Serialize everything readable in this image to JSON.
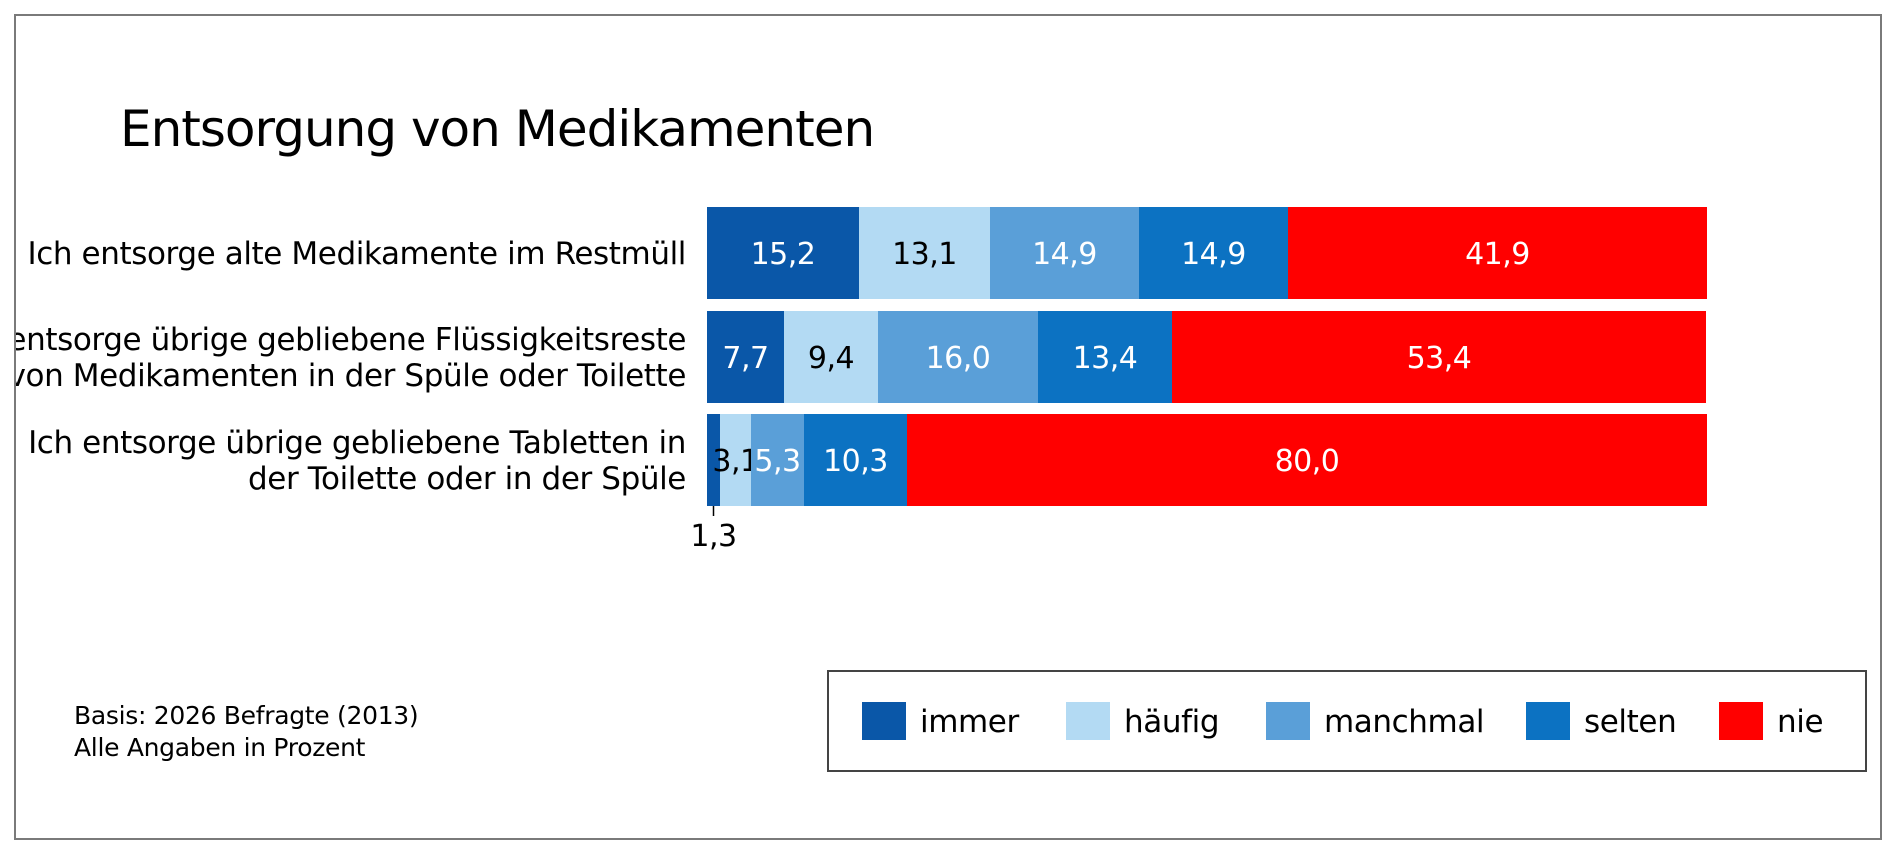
{
  "chart_data": {
    "type": "bar",
    "orientation": "horizontal",
    "stacked": true,
    "title": "Entsorgung von Medikamenten",
    "xlim": [
      0,
      100
    ],
    "categories": [
      [
        "Ich entsorge alte Medikamente im Restmüll"
      ],
      [
        "Ich entsorge übrige gebliebene Flüssigkeitsreste",
        "von Medikamenten in der Spüle oder Toilette"
      ],
      [
        "Ich entsorge übrige gebliebene Tabletten in",
        "der  Toilette oder in der Spüle"
      ]
    ],
    "series": [
      {
        "name": "immer",
        "color": "#0a57a8",
        "label_color": "#ffffff",
        "values": [
          15.2,
          7.7,
          1.3
        ],
        "labels": [
          "15,2",
          "7,7",
          "1,3"
        ]
      },
      {
        "name": "häufig",
        "color": "#b3daf3",
        "label_color": "#000000",
        "values": [
          13.1,
          9.4,
          3.1
        ],
        "labels": [
          "13,1",
          "9,4",
          "3,1"
        ]
      },
      {
        "name": "manchmal",
        "color": "#5a9fd8",
        "label_color": "#ffffff",
        "values": [
          14.9,
          16.0,
          5.3
        ],
        "labels": [
          "14,9",
          "16,0",
          "5,3"
        ]
      },
      {
        "name": "selten",
        "color": "#0c72c2",
        "label_color": "#ffffff",
        "values": [
          14.9,
          13.4,
          10.3
        ],
        "labels": [
          "14,9",
          "13,4",
          "10,3"
        ]
      },
      {
        "name": "nie",
        "color": "#ff0000",
        "label_color": "#ffffff",
        "values": [
          41.9,
          53.4,
          80.0
        ],
        "labels": [
          "41,9",
          "53,4",
          "80,0"
        ]
      }
    ],
    "annotations": [
      {
        "category_index": 2,
        "series": "immer",
        "text": "1,3",
        "placement": "below bar with leader line"
      }
    ],
    "legend": {
      "position": "bottom-right",
      "boxed": true
    },
    "grid": false
  },
  "notes": {
    "basis": "Basis: 2026 Befragte (2013)",
    "units": "Alle Angaben in Prozent"
  }
}
